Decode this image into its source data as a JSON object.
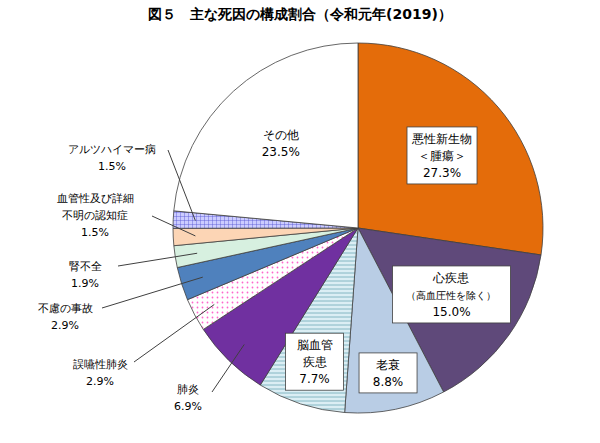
{
  "chart_data": {
    "type": "pie",
    "title": "図５　主な死因の構成割合（令和元年(2019)）",
    "categories": [
      "悪性新生物\n＜腫瘍＞",
      "心疾患\n（高血圧性を除く）",
      "老衰",
      "脳血管\n疾患",
      "肺炎",
      "誤嚥性肺炎",
      "不慮の事故",
      "腎不全",
      "血管性及び詳細\n不明の認知症",
      "アルツハイマー病",
      "その他"
    ],
    "values": [
      27.3,
      15.0,
      8.8,
      7.7,
      6.9,
      2.9,
      2.9,
      1.9,
      1.5,
      1.5,
      23.5
    ],
    "value_labels": [
      "27.3%",
      "15.0%",
      "8.8%",
      "7.7%",
      "6.9%",
      "2.9%",
      "2.9%",
      "1.9%",
      "1.5%",
      "1.5%",
      "23.5%"
    ],
    "colors": [
      "#e46c0a",
      "#5f497a",
      "#b9cde5",
      "#dbeef4",
      "#7030a0",
      "#ffffff",
      "#4f81bd",
      "#d7f0e0",
      "#fcd5b5",
      "#ccccff",
      "#ffffff"
    ],
    "data_labels": true
  }
}
